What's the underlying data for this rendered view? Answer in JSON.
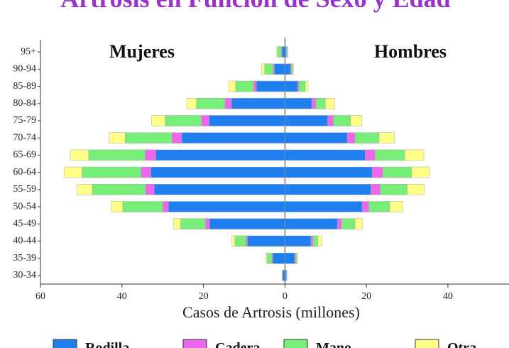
{
  "chart_data": {
    "type": "pyramid",
    "title": "Artrosis en Función de Sexo y Edad",
    "xlabel": "Casos de Artrosis (millones)",
    "categories": [
      "95+",
      "90-94",
      "85-89",
      "80-84",
      "75-79",
      "70-74",
      "65-69",
      "60-64",
      "55-59",
      "50-54",
      "45-49",
      "40-44",
      "35-39",
      "30-34"
    ],
    "xlim": [
      -60,
      55
    ],
    "xticks": [
      {
        "value": -60,
        "label": "60"
      },
      {
        "value": -40,
        "label": "40"
      },
      {
        "value": -20,
        "label": "20"
      },
      0,
      20,
      40
    ],
    "groups": [
      {
        "name": "Mujeres",
        "side": "left",
        "series": [
          {
            "name": "Rodilla",
            "color": "#1f7fef",
            "values": [
              0.7,
              2.6,
              7.0,
              13.1,
              18.6,
              25.3,
              31.7,
              32.9,
              32.1,
              28.6,
              18.5,
              9.2,
              3.0,
              0.5
            ]
          },
          {
            "name": "Cadera",
            "color": "#ee66ee",
            "values": [
              0.2,
              0.3,
              0.7,
              1.6,
              1.9,
              2.4,
              2.6,
              2.4,
              2.1,
              1.4,
              1.0,
              0.3,
              0.2,
              0.1
            ]
          },
          {
            "name": "Mano",
            "color": "#77ee77",
            "values": [
              0.9,
              2.1,
              4.4,
              7.0,
              8.9,
              11.5,
              13.9,
              14.5,
              13.1,
              9.8,
              6.1,
              2.8,
              1.2,
              0.1
            ]
          },
          {
            "name": "Otra",
            "color": "#ffff88",
            "values": [
              0.2,
              0.7,
              1.7,
              2.4,
              3.3,
              4.0,
              4.5,
              4.4,
              3.7,
              2.8,
              1.7,
              0.7,
              0.3,
              0
            ]
          }
        ]
      },
      {
        "name": "Hombres",
        "side": "right",
        "series": [
          {
            "name": "Rodilla",
            "color": "#1f7fef",
            "values": [
              0.3,
              1.4,
              3.1,
              6.6,
              10.5,
              15.3,
              19.7,
              21.4,
              21.1,
              19.0,
              12.9,
              6.4,
              2.4,
              0.3
            ]
          },
          {
            "name": "Cadera",
            "color": "#ee66ee",
            "values": [
              0.1,
              0.2,
              0.3,
              1.0,
              1.4,
              1.9,
              2.4,
              2.6,
              2.3,
              1.6,
              1.0,
              0.5,
              0.2,
              0.1
            ]
          },
          {
            "name": "Mano",
            "color": "#77ee77",
            "values": [
              0.2,
              0.3,
              1.6,
              2.3,
              4.2,
              5.9,
              7.3,
              7.1,
              6.6,
              5.1,
              3.3,
              1.2,
              0.3,
              0.1
            ]
          },
          {
            "name": "Otra",
            "color": "#ffff88",
            "values": [
              0.1,
              0.2,
              0.7,
              2.3,
              2.8,
              3.8,
              4.7,
              4.4,
              4.2,
              3.3,
              1.9,
              1.0,
              0.2,
              0
            ]
          }
        ]
      }
    ]
  }
}
